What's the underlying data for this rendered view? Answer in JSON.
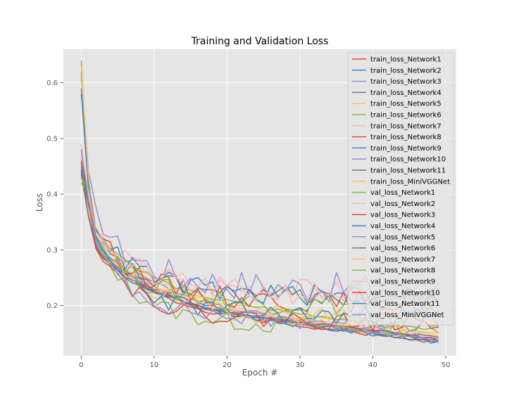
{
  "chart_data": {
    "type": "line",
    "title": "Training and Validation Loss",
    "xlabel": "Epoch #",
    "ylabel": "Loss",
    "xlim": [
      -2.45,
      51.45
    ],
    "ylim": [
      0.11,
      0.66
    ],
    "xticks": [
      0,
      10,
      20,
      30,
      40,
      50
    ],
    "yticks": [
      0.2,
      0.3,
      0.4,
      0.5,
      0.6
    ],
    "grid": true,
    "background": "#e5e5e5",
    "legend_position": "top-right",
    "x": [
      0,
      1,
      2,
      3,
      4,
      5,
      6,
      7,
      8,
      9,
      10,
      11,
      12,
      13,
      14,
      15,
      16,
      17,
      18,
      19,
      20,
      21,
      22,
      23,
      24,
      25,
      26,
      27,
      28,
      29,
      30,
      31,
      32,
      33,
      34,
      35,
      36,
      37,
      38,
      39,
      40,
      41,
      42,
      43,
      44,
      45,
      46,
      47,
      48,
      49
    ],
    "train_base": [
      0.44,
      0.4,
      0.365,
      0.34,
      0.322,
      0.308,
      0.296,
      0.284,
      0.274,
      0.265,
      0.256,
      0.248,
      0.241,
      0.235,
      0.229,
      0.224,
      0.219,
      0.214,
      0.21,
      0.206,
      0.203,
      0.2,
      0.197,
      0.194,
      0.191,
      0.188,
      0.186,
      0.183,
      0.181,
      0.178,
      0.176,
      0.174,
      0.172,
      0.17,
      0.168,
      0.166,
      0.164,
      0.162,
      0.16,
      0.158,
      0.156,
      0.154,
      0.152,
      0.15,
      0.148,
      0.146,
      0.144,
      0.142,
      0.14,
      0.138
    ],
    "val_base": [
      0.47,
      0.42,
      0.38,
      0.355,
      0.335,
      0.318,
      0.303,
      0.292,
      0.282,
      0.274,
      0.267,
      0.261,
      0.256,
      0.252,
      0.248,
      0.245,
      0.242,
      0.24,
      0.238,
      0.236,
      0.234,
      0.233,
      0.232,
      0.231,
      0.23,
      0.229,
      0.228,
      0.228,
      0.227,
      0.227,
      0.226,
      0.226,
      0.225,
      0.225,
      0.225,
      0.224,
      0.224,
      0.224,
      0.224,
      0.223,
      0.223,
      0.223,
      0.223,
      0.223,
      0.222,
      0.222,
      0.222,
      0.222,
      0.222,
      0.222
    ],
    "series": [
      {
        "name": "train_loss_Network1",
        "color": "#E24A33",
        "kind": "train",
        "start": 0.435,
        "end": 0.135,
        "dip": 0.36,
        "amp": 0.004,
        "seed": 1
      },
      {
        "name": "train_loss_Network2",
        "color": "#348ABD",
        "kind": "train",
        "start": 0.47,
        "end": 0.14,
        "dip": 0.38,
        "amp": 0.004,
        "seed": 2
      },
      {
        "name": "train_loss_Network3",
        "color": "#988ED5",
        "kind": "train",
        "start": 0.59,
        "end": 0.14,
        "dip": 0.4,
        "amp": 0.004,
        "seed": 3
      },
      {
        "name": "train_loss_Network4",
        "color": "#777777",
        "kind": "train",
        "start": 0.44,
        "end": 0.138,
        "dip": 0.36,
        "amp": 0.004,
        "seed": 4
      },
      {
        "name": "train_loss_Network5",
        "color": "#FBC15E",
        "kind": "train",
        "start": 0.635,
        "end": 0.15,
        "dip": 0.4,
        "amp": 0.004,
        "seed": 5
      },
      {
        "name": "train_loss_Network6",
        "color": "#8EBA42",
        "kind": "train",
        "start": 0.64,
        "end": 0.155,
        "dip": 0.4,
        "amp": 0.004,
        "seed": 6
      },
      {
        "name": "train_loss_Network7",
        "color": "#FFB5B8",
        "kind": "train",
        "start": 0.49,
        "end": 0.145,
        "dip": 0.38,
        "amp": 0.004,
        "seed": 7
      },
      {
        "name": "train_loss_Network8",
        "color": "#E24A33",
        "kind": "train",
        "start": 0.455,
        "end": 0.14,
        "dip": 0.37,
        "amp": 0.004,
        "seed": 8
      },
      {
        "name": "train_loss_Network9",
        "color": "#348ABD",
        "kind": "train",
        "start": 0.48,
        "end": 0.135,
        "dip": 0.37,
        "amp": 0.004,
        "seed": 9
      },
      {
        "name": "train_loss_Network10",
        "color": "#988ED5",
        "kind": "train",
        "start": 0.47,
        "end": 0.138,
        "dip": 0.37,
        "amp": 0.004,
        "seed": 10
      },
      {
        "name": "train_loss_Network11",
        "color": "#777777",
        "kind": "train",
        "start": 0.445,
        "end": 0.142,
        "dip": 0.36,
        "amp": 0.004,
        "seed": 11
      },
      {
        "name": "train_loss_MiniVGGNet",
        "color": "#FBC15E",
        "kind": "train",
        "start": 0.46,
        "end": 0.148,
        "dip": 0.37,
        "amp": 0.004,
        "seed": 12
      },
      {
        "name": "val_loss_Network1",
        "color": "#8EBA42",
        "kind": "val",
        "start": 0.42,
        "end": 0.16,
        "dip": 0.4,
        "amp": 0.016,
        "seed": 13
      },
      {
        "name": "val_loss_Network2",
        "color": "#FFB5B8",
        "kind": "val",
        "start": 0.48,
        "end": 0.225,
        "dip": 0.4,
        "amp": 0.02,
        "seed": 14
      },
      {
        "name": "val_loss_Network3",
        "color": "#E24A33",
        "kind": "val",
        "start": 0.62,
        "end": 0.205,
        "dip": 0.42,
        "amp": 0.02,
        "seed": 15
      },
      {
        "name": "val_loss_Network4",
        "color": "#348ABD",
        "kind": "val",
        "start": 0.58,
        "end": 0.215,
        "dip": 0.42,
        "amp": 0.02,
        "seed": 16
      },
      {
        "name": "val_loss_Network5",
        "color": "#988ED5",
        "kind": "val",
        "start": 0.61,
        "end": 0.23,
        "dip": 0.44,
        "amp": 0.028,
        "seed": 17
      },
      {
        "name": "val_loss_Network6",
        "color": "#777777",
        "kind": "val",
        "start": 0.44,
        "end": 0.215,
        "dip": 0.38,
        "amp": 0.018,
        "seed": 18
      },
      {
        "name": "val_loss_Network7",
        "color": "#FBC15E",
        "kind": "val",
        "start": 0.63,
        "end": 0.18,
        "dip": 0.43,
        "amp": 0.018,
        "seed": 19
      },
      {
        "name": "val_loss_Network8",
        "color": "#8EBA42",
        "kind": "val",
        "start": 0.43,
        "end": 0.2,
        "dip": 0.4,
        "amp": 0.02,
        "seed": 20
      },
      {
        "name": "val_loss_Network9",
        "color": "#FFB5B8",
        "kind": "val",
        "start": 0.47,
        "end": 0.22,
        "dip": 0.4,
        "amp": 0.022,
        "seed": 21
      },
      {
        "name": "val_loss_Network10",
        "color": "#E24A33",
        "kind": "val",
        "start": 0.46,
        "end": 0.17,
        "dip": 0.39,
        "amp": 0.016,
        "seed": 22
      },
      {
        "name": "val_loss_Network11",
        "color": "#348ABD",
        "kind": "val",
        "start": 0.45,
        "end": 0.18,
        "dip": 0.39,
        "amp": 0.018,
        "seed": 23
      },
      {
        "name": "val_loss_MiniVGGNet",
        "color": "#988ED5",
        "kind": "val",
        "start": 0.48,
        "end": 0.17,
        "dip": 0.39,
        "amp": 0.016,
        "seed": 24
      }
    ]
  }
}
